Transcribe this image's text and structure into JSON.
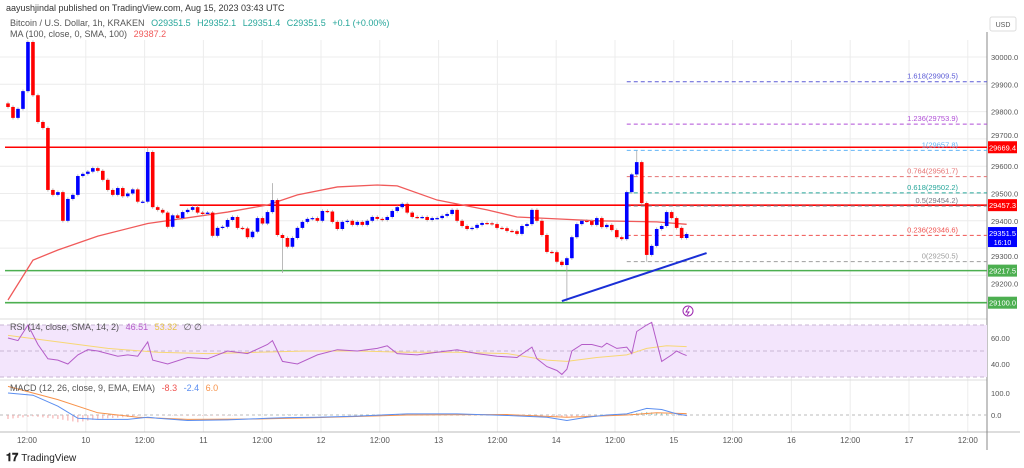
{
  "header": {
    "published": "aayushjindal published on TradingView.com, Aug 15, 2023 03:43 UTC"
  },
  "legend": {
    "symbol": "Bitcoin / U.S. Dollar, 1h, KRAKEN",
    "open": "O29351.5",
    "high": "H29352.1",
    "low": "L29351.4",
    "close": "C29351.5",
    "change": "+0.1 (+0.00%)",
    "ma_label": "MA (100, close, 0, SMA, 100)",
    "ma_value": "29387.2",
    "rsi_label": "RSI (14, close, SMA, 14, 2)",
    "rsi_value": "46.51",
    "rsi_signal_value": "53.32",
    "rsi_extra": "∅ ∅",
    "macd_label": "MACD (12, 26, close, 9, EMA, EMA)",
    "macd_hist": "-8.3",
    "macd_value": "-2.4",
    "macd_signal": "6.0"
  },
  "footer": {
    "brand": "TradingView"
  },
  "colors": {
    "up": "#0000ff",
    "down": "#ff0000",
    "ma": "#f05a5a",
    "rsi": "#b45cc8",
    "rsi_signal": "#f7d774",
    "macd": "#5b8ef0",
    "macd_signal": "#f7924a",
    "support": "#4caf50",
    "trend": "#1a2fd6"
  },
  "chart_data": {
    "type": "candlestick",
    "currency": "USD",
    "price_ticks": [
      "30000.0",
      "29900.0",
      "29800.0",
      "29700.0",
      "29600.0",
      "29500.0",
      "29400.0",
      "29300.0",
      "29200.0"
    ],
    "price_range": [
      29050,
      30100
    ],
    "time_ticks": [
      "12:00",
      "10",
      "12:00",
      "11",
      "12:00",
      "12",
      "12:00",
      "13",
      "12:00",
      "14",
      "12:00",
      "15",
      "12:00",
      "16",
      "12:00",
      "17",
      "12:00"
    ],
    "closes": [
      29817,
      29777,
      29810,
      29875,
      30055,
      29860,
      29762,
      29740,
      29513,
      29495,
      29505,
      29400,
      29480,
      29495,
      29564,
      29572,
      29580,
      29593,
      29583,
      29550,
      29513,
      29495,
      29520,
      29490,
      29500,
      29515,
      29470,
      29470,
      29652,
      29450,
      29440,
      29430,
      29378,
      29420,
      29410,
      29432,
      29440,
      29450,
      29430,
      29425,
      29430,
      29345,
      29374,
      29378,
      29403,
      29414,
      29374,
      29372,
      29340,
      29360,
      29410,
      29390,
      29432,
      29476,
      29348,
      29337,
      29305,
      29337,
      29374,
      29396,
      29407,
      29410,
      29400,
      29436,
      29434,
      29396,
      29370,
      29396,
      29400,
      29385,
      29396,
      29385,
      29400,
      29414,
      29407,
      29403,
      29414,
      29436,
      29450,
      29462,
      29430,
      29414,
      29413,
      29414,
      29403,
      29410,
      29410,
      29418,
      29425,
      29440,
      29400,
      29381,
      29370,
      29374,
      29385,
      29392,
      29391,
      29388,
      29374,
      29373,
      29363,
      29362,
      29352,
      29381,
      29388,
      29440,
      29400,
      29348,
      29286,
      29285,
      29250,
      29238,
      29263,
      29340,
      29388,
      29400,
      29399,
      29385,
      29410,
      29377,
      29385,
      29366,
      29340,
      29333,
      29505,
      29570,
      29615,
      29465,
      29275,
      29308,
      29370,
      29381,
      29432,
      29410,
      29374,
      29337,
      29351.5
    ],
    "first_open": 29830,
    "extremes": [
      {
        "i": 4,
        "high": 30060
      },
      {
        "i": 28,
        "high": 29668
      },
      {
        "i": 53,
        "high": 29538
      },
      {
        "i": 55,
        "low": 29209
      },
      {
        "i": 112,
        "low": 29105
      },
      {
        "i": 126,
        "high": 29657.8
      },
      {
        "i": 128,
        "low": 29250.5
      }
    ],
    "ma100": [
      [
        0,
        29110
      ],
      [
        5,
        29256
      ],
      [
        10,
        29293
      ],
      [
        18,
        29344
      ],
      [
        28,
        29390
      ],
      [
        44,
        29432
      ],
      [
        52,
        29458
      ],
      [
        58,
        29495
      ],
      [
        66,
        29524
      ],
      [
        74,
        29531
      ],
      [
        78,
        29528
      ],
      [
        86,
        29476
      ],
      [
        96,
        29440
      ],
      [
        102,
        29414
      ],
      [
        110,
        29407
      ],
      [
        118,
        29400
      ],
      [
        130,
        29396
      ],
      [
        136,
        29387.2
      ]
    ],
    "horizontal_levels": [
      {
        "price": 29669.4,
        "label": "29669.4",
        "color": "#ff0000",
        "from": 0
      },
      {
        "price": 29457.3,
        "label": "29457.3",
        "color": "#ff0000",
        "from": 35
      },
      {
        "price": 29217.5,
        "label": "29217.5",
        "color": "#4caf50",
        "from": 0
      },
      {
        "price": 29100.0,
        "label": "29100.0",
        "color": "#4caf50",
        "from": 0
      }
    ],
    "last_price": {
      "label": "29351.5",
      "countdown": "16:10",
      "color": "#0000ff"
    },
    "trendline": {
      "from": [
        111,
        29106
      ],
      "to": [
        140,
        29282
      ]
    },
    "fibonacci": {
      "from": 124,
      "levels": [
        {
          "ratio": "1.618",
          "price": 29909.5,
          "color": "#5b5bd6"
        },
        {
          "ratio": "1.236",
          "price": 29753.9,
          "color": "#b04fd6"
        },
        {
          "ratio": "1",
          "price": 29657.8,
          "color": "#64b5f6"
        },
        {
          "ratio": "0.764",
          "price": 29561.7,
          "color": "#e57373"
        },
        {
          "ratio": "0.618",
          "price": 29502.2,
          "color": "#26a69a"
        },
        {
          "ratio": "0.5",
          "price": 29454.2,
          "color": "#787b86"
        },
        {
          "ratio": "0.236",
          "price": 29346.6,
          "color": "#ef5350"
        },
        {
          "ratio": "0",
          "price": 29250.5,
          "color": "#9e9e9e"
        }
      ]
    },
    "rsi": {
      "ticks": [
        "60.00",
        "40.00"
      ],
      "band": [
        30,
        70
      ],
      "values": [
        [
          0,
          60
        ],
        [
          2,
          58
        ],
        [
          4,
          70
        ],
        [
          6,
          55
        ],
        [
          8,
          44
        ],
        [
          10,
          43
        ],
        [
          12,
          40
        ],
        [
          14,
          47
        ],
        [
          16,
          51
        ],
        [
          18,
          50
        ],
        [
          20,
          48
        ],
        [
          22,
          46
        ],
        [
          24,
          47
        ],
        [
          26,
          46
        ],
        [
          28,
          57
        ],
        [
          29,
          43
        ],
        [
          32,
          40
        ],
        [
          36,
          45
        ],
        [
          40,
          44
        ],
        [
          44,
          50
        ],
        [
          48,
          48
        ],
        [
          52,
          55
        ],
        [
          53,
          58
        ],
        [
          55,
          42
        ],
        [
          58,
          40
        ],
        [
          62,
          47
        ],
        [
          66,
          51
        ],
        [
          70,
          50
        ],
        [
          74,
          52
        ],
        [
          76,
          54
        ],
        [
          78,
          48
        ],
        [
          82,
          47
        ],
        [
          86,
          49
        ],
        [
          90,
          51
        ],
        [
          94,
          48
        ],
        [
          98,
          46
        ],
        [
          102,
          45
        ],
        [
          105,
          53
        ],
        [
          106,
          44
        ],
        [
          108,
          38
        ],
        [
          110,
          35
        ],
        [
          111,
          32
        ],
        [
          112,
          36
        ],
        [
          113,
          50
        ],
        [
          115,
          55
        ],
        [
          117,
          55
        ],
        [
          119,
          53
        ],
        [
          120,
          56
        ],
        [
          122,
          52
        ],
        [
          124,
          53
        ],
        [
          125,
          48
        ],
        [
          126,
          65
        ],
        [
          128,
          70
        ],
        [
          129,
          72
        ],
        [
          131,
          42
        ],
        [
          133,
          47
        ],
        [
          134,
          50
        ],
        [
          135,
          48
        ],
        [
          136,
          46.51
        ]
      ],
      "signal": [
        [
          0,
          62
        ],
        [
          10,
          57
        ],
        [
          20,
          52
        ],
        [
          30,
          49
        ],
        [
          40,
          48
        ],
        [
          50,
          49
        ],
        [
          60,
          50
        ],
        [
          70,
          50
        ],
        [
          80,
          49
        ],
        [
          90,
          49
        ],
        [
          100,
          48
        ],
        [
          108,
          43
        ],
        [
          112,
          42
        ],
        [
          118,
          45
        ],
        [
          124,
          47
        ],
        [
          128,
          52
        ],
        [
          132,
          54
        ],
        [
          136,
          53.32
        ]
      ]
    },
    "macd": {
      "ticks": [
        "100.0",
        "0.0"
      ],
      "macd": [
        [
          0,
          100
        ],
        [
          5,
          90
        ],
        [
          10,
          40
        ],
        [
          14,
          -15
        ],
        [
          18,
          -20
        ],
        [
          24,
          -20
        ],
        [
          28,
          -10
        ],
        [
          30,
          -15
        ],
        [
          36,
          -25
        ],
        [
          44,
          -22
        ],
        [
          52,
          -15
        ],
        [
          56,
          -12
        ],
        [
          62,
          -10
        ],
        [
          70,
          -5
        ],
        [
          80,
          5
        ],
        [
          90,
          5
        ],
        [
          100,
          -2
        ],
        [
          108,
          -10
        ],
        [
          112,
          -25
        ],
        [
          116,
          -10
        ],
        [
          120,
          0
        ],
        [
          124,
          5
        ],
        [
          128,
          30
        ],
        [
          131,
          25
        ],
        [
          134,
          5
        ],
        [
          136,
          -2.4
        ]
      ],
      "signal": [
        [
          0,
          130
        ],
        [
          10,
          70
        ],
        [
          18,
          10
        ],
        [
          26,
          -10
        ],
        [
          36,
          -20
        ],
        [
          50,
          -18
        ],
        [
          62,
          -12
        ],
        [
          80,
          0
        ],
        [
          100,
          2
        ],
        [
          112,
          -10
        ],
        [
          124,
          0
        ],
        [
          130,
          10
        ],
        [
          136,
          6
        ]
      ]
    }
  }
}
